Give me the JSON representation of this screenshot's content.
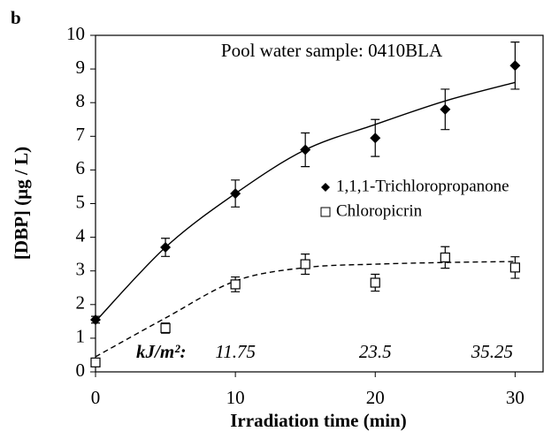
{
  "chart_data": {
    "type": "scatter",
    "panel_label": "b",
    "title": "Pool water sample: 0410BLA",
    "xlabel": "Irradiation time (min)",
    "ylabel": "[DBP] (µg / L)",
    "x": [
      0,
      5,
      10,
      15,
      20,
      25,
      30
    ],
    "series": [
      {
        "name": "1,1,1-Trichloropropanone",
        "color": "#000000",
        "marker": "diamond",
        "line": "solid",
        "values": [
          1.55,
          3.7,
          5.3,
          6.6,
          6.95,
          7.8,
          9.1
        ],
        "errors": [
          0.1,
          0.27,
          0.4,
          0.5,
          0.55,
          0.6,
          0.7
        ],
        "trend": [
          1.5,
          3.7,
          5.3,
          6.6,
          7.35,
          8.05,
          8.6
        ]
      },
      {
        "name": "Chloropicrin",
        "color": "#000000",
        "marker": "square",
        "line": "dashed",
        "values": [
          0.28,
          1.3,
          2.6,
          3.2,
          2.65,
          3.4,
          3.1
        ],
        "errors": [
          0.08,
          0.15,
          0.22,
          0.3,
          0.25,
          0.32,
          0.32
        ],
        "trend": [
          0.45,
          1.6,
          2.7,
          3.1,
          3.2,
          3.25,
          3.28
        ]
      }
    ],
    "annotations": [
      {
        "text": "kJ/m²:",
        "x": 0
      },
      {
        "text": "11.75",
        "x": 10
      },
      {
        "text": "23.5",
        "x": 20
      },
      {
        "text": "35.25",
        "x": 30
      }
    ],
    "xlim": [
      0,
      32
    ],
    "xticks": [
      0,
      10,
      20,
      30
    ],
    "ylim": [
      0,
      10
    ],
    "yticks": [
      0,
      1,
      2,
      3,
      4,
      5,
      6,
      7,
      8,
      9,
      10
    ]
  }
}
